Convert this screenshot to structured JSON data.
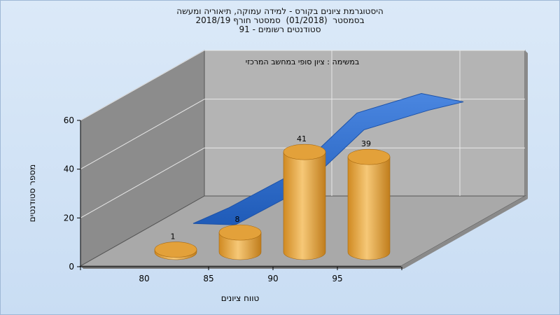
{
  "chart_data": {
    "type": "bar",
    "title": [
      "היסטוגרמת ציונים בקורס - למידה עמוקה, תיאוריה ומעשה",
      "בסמסטר  (01/2018)  סמסטר חורף 2018/19",
      "סטודנטים רשומים - 91"
    ],
    "annotation": "במשימה : ציון סופי במחשב המרכזי",
    "xlabel": "טווח ציונים",
    "ylabel": "מספר סטודנטים",
    "categories": [
      "80",
      "85",
      "90",
      "95"
    ],
    "values": [
      1,
      8,
      41,
      39
    ],
    "ylim": [
      0,
      60
    ],
    "yticks": [
      0,
      20,
      40,
      60
    ],
    "trend_series": [
      16,
      30,
      55,
      63
    ],
    "colors": {
      "bar": "#e3a13a",
      "bar_light": "#f7cf86",
      "bar_dark": "#b87718",
      "trend": "#2e6fcf",
      "back_wall": "#b4b4b4",
      "side_wall": "#8a8a8a",
      "floor": "#a8a8a8"
    },
    "grid": true
  }
}
